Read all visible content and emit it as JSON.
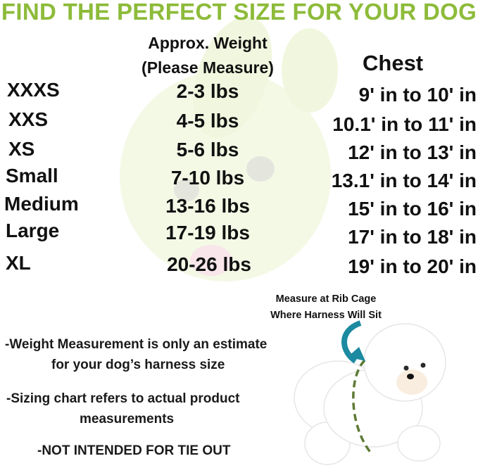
{
  "title": "FIND THE PERFECT SIZE FOR YOUR DOG",
  "colors": {
    "title": "#8dbb3a",
    "arrow": "#1c8aa0",
    "dash": "#5e7a34",
    "mascot": "#f3f8e3"
  },
  "headers": {
    "weight_line1": "Approx. Weight",
    "weight_line2": "(Please Measure)",
    "chest": "Chest"
  },
  "rows": [
    {
      "size": "XXXS",
      "weight": "2-3 lbs",
      "chest": "9' in to 10' in"
    },
    {
      "size": "XXS",
      "weight": "4-5 lbs",
      "chest": "10.1' in to 11' in"
    },
    {
      "size": "XS",
      "weight": "5-6 lbs",
      "chest": "12' in to 13' in"
    },
    {
      "size": "Small",
      "weight": "7-10 lbs",
      "chest": "13.1' in to 14' in"
    },
    {
      "size": "Medium",
      "weight": "13-16 lbs",
      "chest": "15' in to 16' in"
    },
    {
      "size": "Large",
      "weight": "17-19 lbs",
      "chest": "17' in to 18' in"
    },
    {
      "size": "XL",
      "weight": "20-26 lbs",
      "chest": "19' in to 20' in"
    }
  ],
  "caption": {
    "line1": "Measure at Rib Cage",
    "line2": "Where Harness Will Sit"
  },
  "notes": [
    "-Weight Measurement is only an estimate",
    "for your dog’s harness size",
    "-Sizing chart refers to actual product",
    "measurements",
    "-NOT INTENDED FOR TIE OUT"
  ]
}
